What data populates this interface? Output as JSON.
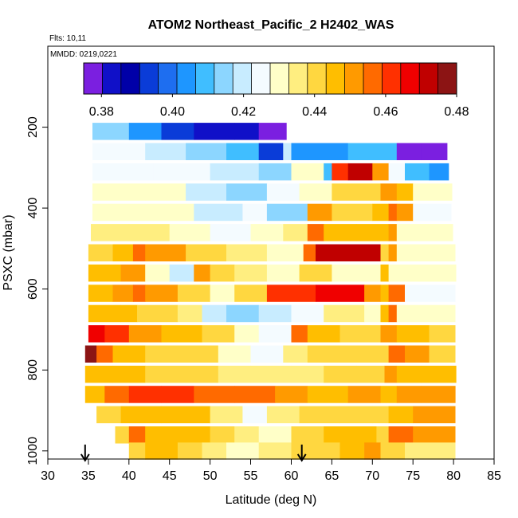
{
  "chart_data": {
    "type": "heatmap",
    "title": "ATOM2 Northeast_Pacific_2 H2402_WAS",
    "subtitle_lines": [
      "Flts: 10,11",
      "MMDD: 0219,0221"
    ],
    "xlabel": "Latitude (deg N)",
    "ylabel": "PSXC (mbar)",
    "xlim": [
      30,
      85
    ],
    "ylim": [
      1020,
      0
    ],
    "x_ticks": [
      30,
      35,
      40,
      45,
      50,
      55,
      60,
      65,
      70,
      75,
      80,
      85
    ],
    "y_ticks": [
      200,
      400,
      600,
      800,
      1000
    ],
    "colorbar": {
      "min": 0.375,
      "max": 0.48,
      "ticks": [
        0.38,
        0.4,
        0.42,
        0.44,
        0.46,
        0.48
      ],
      "tick_labels": [
        "0.38",
        "0.40",
        "0.42",
        "0.44",
        "0.46",
        "0.48"
      ],
      "colors": [
        "#7B1FE0",
        "#1010C8",
        "#0000A8",
        "#0A3CD8",
        "#1E6EF0",
        "#1E96FF",
        "#40BEFF",
        "#8CD6FF",
        "#C8ECFF",
        "#F4FBFF",
        "#FFFFC8",
        "#FFEE80",
        "#FFD740",
        "#FFBE00",
        "#FF9A00",
        "#FF6A00",
        "#FF3000",
        "#F00000",
        "#C00000",
        "#8C1414"
      ]
    },
    "rows": [
      {
        "p": 210,
        "segments": [
          [
            35.5,
            0.415
          ],
          [
            40,
            0.405
          ],
          [
            44,
            0.395
          ],
          [
            48,
            0.385
          ],
          [
            53,
            0.382
          ],
          [
            56,
            0.378
          ],
          [
            59.4,
            null
          ]
        ]
      },
      {
        "p": 260,
        "segments": [
          [
            35.5,
            0.425
          ],
          [
            42,
            0.422
          ],
          [
            47,
            0.415
          ],
          [
            52,
            0.41
          ],
          [
            56,
            0.395
          ],
          [
            59,
            0.42
          ],
          [
            60,
            0.405
          ],
          [
            67,
            0.408
          ],
          [
            73,
            0.378
          ],
          [
            76,
            0.38
          ],
          [
            79.2,
            null
          ]
        ]
      },
      {
        "p": 310,
        "segments": [
          [
            35.5,
            0.425
          ],
          [
            43,
            0.425
          ],
          [
            50,
            0.418
          ],
          [
            56,
            0.415
          ],
          [
            60,
            0.43
          ],
          [
            64,
            0.41
          ],
          [
            65,
            0.462
          ],
          [
            67,
            0.47
          ],
          [
            70,
            0.45
          ],
          [
            72,
            0.425
          ],
          [
            74,
            0.41
          ],
          [
            77,
            0.405
          ],
          [
            79.4,
            null
          ]
        ]
      },
      {
        "p": 360,
        "segments": [
          [
            35.5,
            0.43
          ],
          [
            42,
            0.428
          ],
          [
            47,
            0.422
          ],
          [
            52,
            0.415
          ],
          [
            57,
            0.425
          ],
          [
            61,
            0.428
          ],
          [
            65,
            0.438
          ],
          [
            71,
            0.45
          ],
          [
            73,
            0.445
          ],
          [
            75,
            0.43
          ],
          [
            79.8,
            null
          ]
        ]
      },
      {
        "p": 410,
        "segments": [
          [
            35.5,
            0.43
          ],
          [
            43,
            0.43
          ],
          [
            48,
            0.42
          ],
          [
            54,
            0.423
          ],
          [
            57,
            0.415
          ],
          [
            62,
            0.45
          ],
          [
            65,
            0.44
          ],
          [
            70,
            0.445
          ],
          [
            72,
            0.455
          ],
          [
            73,
            0.45
          ],
          [
            75,
            0.425
          ],
          [
            79.7,
            null
          ]
        ]
      },
      {
        "p": 460,
        "segments": [
          [
            35.3,
            0.435
          ],
          [
            40,
            0.435
          ],
          [
            45,
            0.428
          ],
          [
            50,
            0.425
          ],
          [
            55,
            0.43
          ],
          [
            59,
            0.435
          ],
          [
            62,
            0.455
          ],
          [
            64,
            0.445
          ],
          [
            68,
            0.445
          ],
          [
            72,
            0.452
          ],
          [
            73,
            0.43
          ],
          [
            79.9,
            null
          ]
        ]
      },
      {
        "p": 510,
        "segments": [
          [
            35,
            0.44
          ],
          [
            38,
            0.445
          ],
          [
            40.5,
            0.458
          ],
          [
            42,
            0.45
          ],
          [
            47,
            0.443
          ],
          [
            52,
            0.437
          ],
          [
            57,
            0.43
          ],
          [
            61.5,
            0.455
          ],
          [
            63,
            0.47
          ],
          [
            71,
            0.44
          ],
          [
            72,
            0.452
          ],
          [
            73,
            0.43
          ],
          [
            80.2,
            null
          ]
        ]
      },
      {
        "p": 560,
        "segments": [
          [
            35,
            0.445
          ],
          [
            39,
            0.45
          ],
          [
            42,
            0.43
          ],
          [
            45,
            0.42
          ],
          [
            48,
            0.45
          ],
          [
            50,
            0.44
          ],
          [
            53,
            0.435
          ],
          [
            57,
            0.43
          ],
          [
            61,
            0.44
          ],
          [
            65,
            0.43
          ],
          [
            71,
            0.448
          ],
          [
            72,
            0.43
          ],
          [
            80.3,
            null
          ]
        ]
      },
      {
        "p": 610,
        "segments": [
          [
            35,
            0.447
          ],
          [
            38,
            0.45
          ],
          [
            40.5,
            0.458
          ],
          [
            42,
            0.45
          ],
          [
            46,
            0.44
          ],
          [
            50,
            0.43
          ],
          [
            53,
            0.438
          ],
          [
            57,
            0.46
          ],
          [
            63,
            0.468
          ],
          [
            69,
            0.45
          ],
          [
            71,
            0.448
          ],
          [
            72,
            0.455
          ],
          [
            74,
            0.425
          ],
          [
            80.2,
            null
          ]
        ]
      },
      {
        "p": 660,
        "segments": [
          [
            35,
            0.447
          ],
          [
            39,
            0.445
          ],
          [
            41,
            0.44
          ],
          [
            46,
            0.435
          ],
          [
            49,
            0.42
          ],
          [
            52,
            0.415
          ],
          [
            56,
            0.42
          ],
          [
            60,
            0.425
          ],
          [
            64,
            0.435
          ],
          [
            69,
            0.43
          ],
          [
            71,
            0.445
          ],
          [
            72,
            0.458
          ],
          [
            73,
            0.43
          ],
          [
            80.2,
            null
          ]
        ]
      },
      {
        "p": 710,
        "segments": [
          [
            35,
            0.465
          ],
          [
            37,
            0.46
          ],
          [
            40,
            0.45
          ],
          [
            44,
            0.448
          ],
          [
            49,
            0.44
          ],
          [
            53,
            0.43
          ],
          [
            56,
            0.425
          ],
          [
            60,
            0.455
          ],
          [
            62,
            0.445
          ],
          [
            66,
            0.44
          ],
          [
            71,
            0.45
          ],
          [
            73,
            0.445
          ],
          [
            77,
            0.44
          ],
          [
            80.2,
            null
          ]
        ]
      },
      {
        "p": 760,
        "segments": [
          [
            34.6,
            0.475
          ],
          [
            36,
            0.455
          ],
          [
            38,
            0.445
          ],
          [
            42,
            0.44
          ],
          [
            47,
            0.438
          ],
          [
            51,
            0.432
          ],
          [
            55,
            0.425
          ],
          [
            59,
            0.435
          ],
          [
            62,
            0.438
          ],
          [
            67,
            0.44
          ],
          [
            71,
            0.44
          ],
          [
            72,
            0.458
          ],
          [
            74,
            0.45
          ],
          [
            77,
            0.44
          ],
          [
            80.2,
            null
          ]
        ]
      },
      {
        "p": 810,
        "segments": [
          [
            34.6,
            0.445
          ],
          [
            38,
            0.445
          ],
          [
            42,
            0.443
          ],
          [
            47,
            0.44
          ],
          [
            51,
            0.437
          ],
          [
            55,
            0.435
          ],
          [
            60,
            0.437
          ],
          [
            64,
            0.44
          ],
          [
            68,
            0.44
          ],
          [
            71.5,
            0.45
          ],
          [
            73,
            0.445
          ],
          [
            76,
            0.448
          ],
          [
            80.3,
            null
          ]
        ]
      },
      {
        "p": 860,
        "segments": [
          [
            34.6,
            0.448
          ],
          [
            37,
            0.455
          ],
          [
            40,
            0.462
          ],
          [
            44,
            0.46
          ],
          [
            48,
            0.458
          ],
          [
            53,
            0.455
          ],
          [
            58,
            0.45
          ],
          [
            62,
            0.447
          ],
          [
            67,
            0.452
          ],
          [
            71,
            0.445
          ],
          [
            73,
            0.45
          ],
          [
            76,
            0.452
          ],
          [
            80.2,
            null
          ]
        ]
      },
      {
        "p": 910,
        "segments": [
          [
            36,
            0.44
          ],
          [
            39,
            0.445
          ],
          [
            44,
            0.448
          ],
          [
            49,
            0.445
          ],
          [
            50,
            0.435
          ],
          [
            54,
            0.425
          ],
          [
            57,
            0.435
          ],
          [
            61,
            0.438
          ],
          [
            66,
            0.44
          ],
          [
            70,
            0.44
          ],
          [
            72,
            0.448
          ],
          [
            75,
            0.45
          ],
          [
            80.2,
            null
          ]
        ]
      },
      {
        "p": 960,
        "segments": [
          [
            38.3,
            0.44
          ],
          [
            40,
            0.455
          ],
          [
            42,
            0.448
          ],
          [
            46,
            0.445
          ],
          [
            50,
            0.44
          ],
          [
            53,
            0.435
          ],
          [
            56,
            0.432
          ],
          [
            60,
            0.438
          ],
          [
            64,
            0.445
          ],
          [
            68,
            0.445
          ],
          [
            70.5,
            0.438
          ],
          [
            72,
            0.455
          ],
          [
            75,
            0.452
          ],
          [
            80.2,
            null
          ]
        ]
      },
      {
        "p": 1000,
        "segments": [
          [
            40,
            0.44
          ],
          [
            42,
            0.445
          ],
          [
            46,
            0.44
          ],
          [
            49,
            0.435
          ],
          [
            52,
            0.432
          ],
          [
            56,
            0.435
          ],
          [
            60,
            0.44
          ],
          [
            63,
            0.443
          ],
          [
            66,
            0.446
          ],
          [
            69,
            0.452
          ],
          [
            71,
            0.438
          ],
          [
            74,
            0.435
          ],
          [
            80.2,
            null
          ]
        ]
      }
    ],
    "flight_markers": [
      {
        "x": 34.6,
        "y": 1000
      },
      {
        "x": 61.3,
        "y": 1000
      }
    ]
  }
}
